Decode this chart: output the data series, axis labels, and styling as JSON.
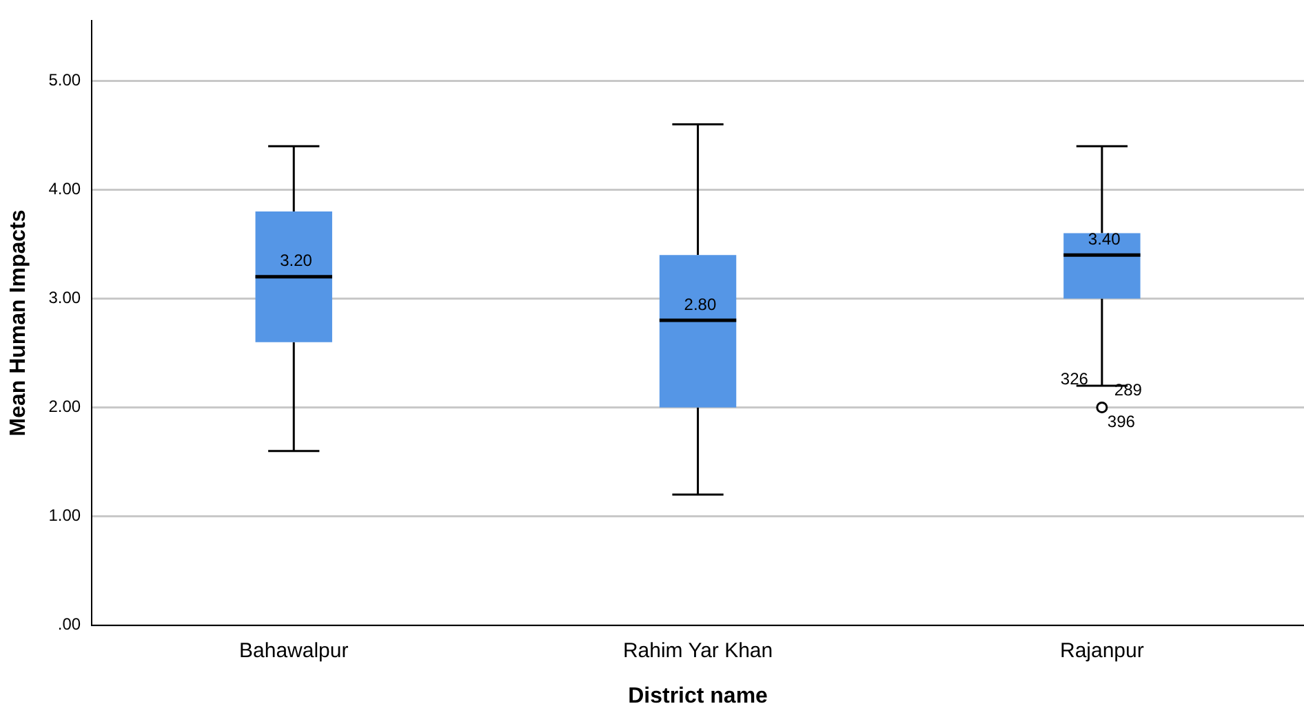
{
  "chart_data": {
    "type": "box",
    "xlabel": "District name",
    "ylabel": "Mean Human Impacts",
    "categories": [
      "Bahawalpur",
      "Rahim Yar Khan",
      "Rajanpur"
    ],
    "boxes": [
      {
        "low": 1.6,
        "q1": 2.6,
        "median": 3.2,
        "q3": 3.8,
        "high": 4.4
      },
      {
        "low": 1.2,
        "q1": 2.0,
        "median": 2.8,
        "q3": 3.4,
        "high": 4.6
      },
      {
        "low": 2.2,
        "q1": 3.0,
        "median": 3.4,
        "q3": 3.6,
        "high": 4.4,
        "outliers": [
          2.0
        ]
      }
    ],
    "color": "#5596e6",
    "ylim": [
      0,
      5.55
    ],
    "yticks": [
      {
        "value": 0,
        "label": ".00"
      },
      {
        "value": 1,
        "label": "1.00"
      },
      {
        "value": 2,
        "label": "2.00"
      },
      {
        "value": 3,
        "label": "3.00"
      },
      {
        "value": 4,
        "label": "4.00"
      },
      {
        "value": 5,
        "label": "5.00"
      }
    ],
    "grid": "y",
    "legend": false,
    "annotations": [
      {
        "text": "3.20",
        "x": "Bahawalpur",
        "y": 3.2
      },
      {
        "text": "2.80",
        "x": "Rahim Yar Khan",
        "y": 2.8
      },
      {
        "text": "3.40",
        "x": "Rajanpur",
        "y": 3.4
      },
      "326",
      "289",
      "396"
    ]
  }
}
